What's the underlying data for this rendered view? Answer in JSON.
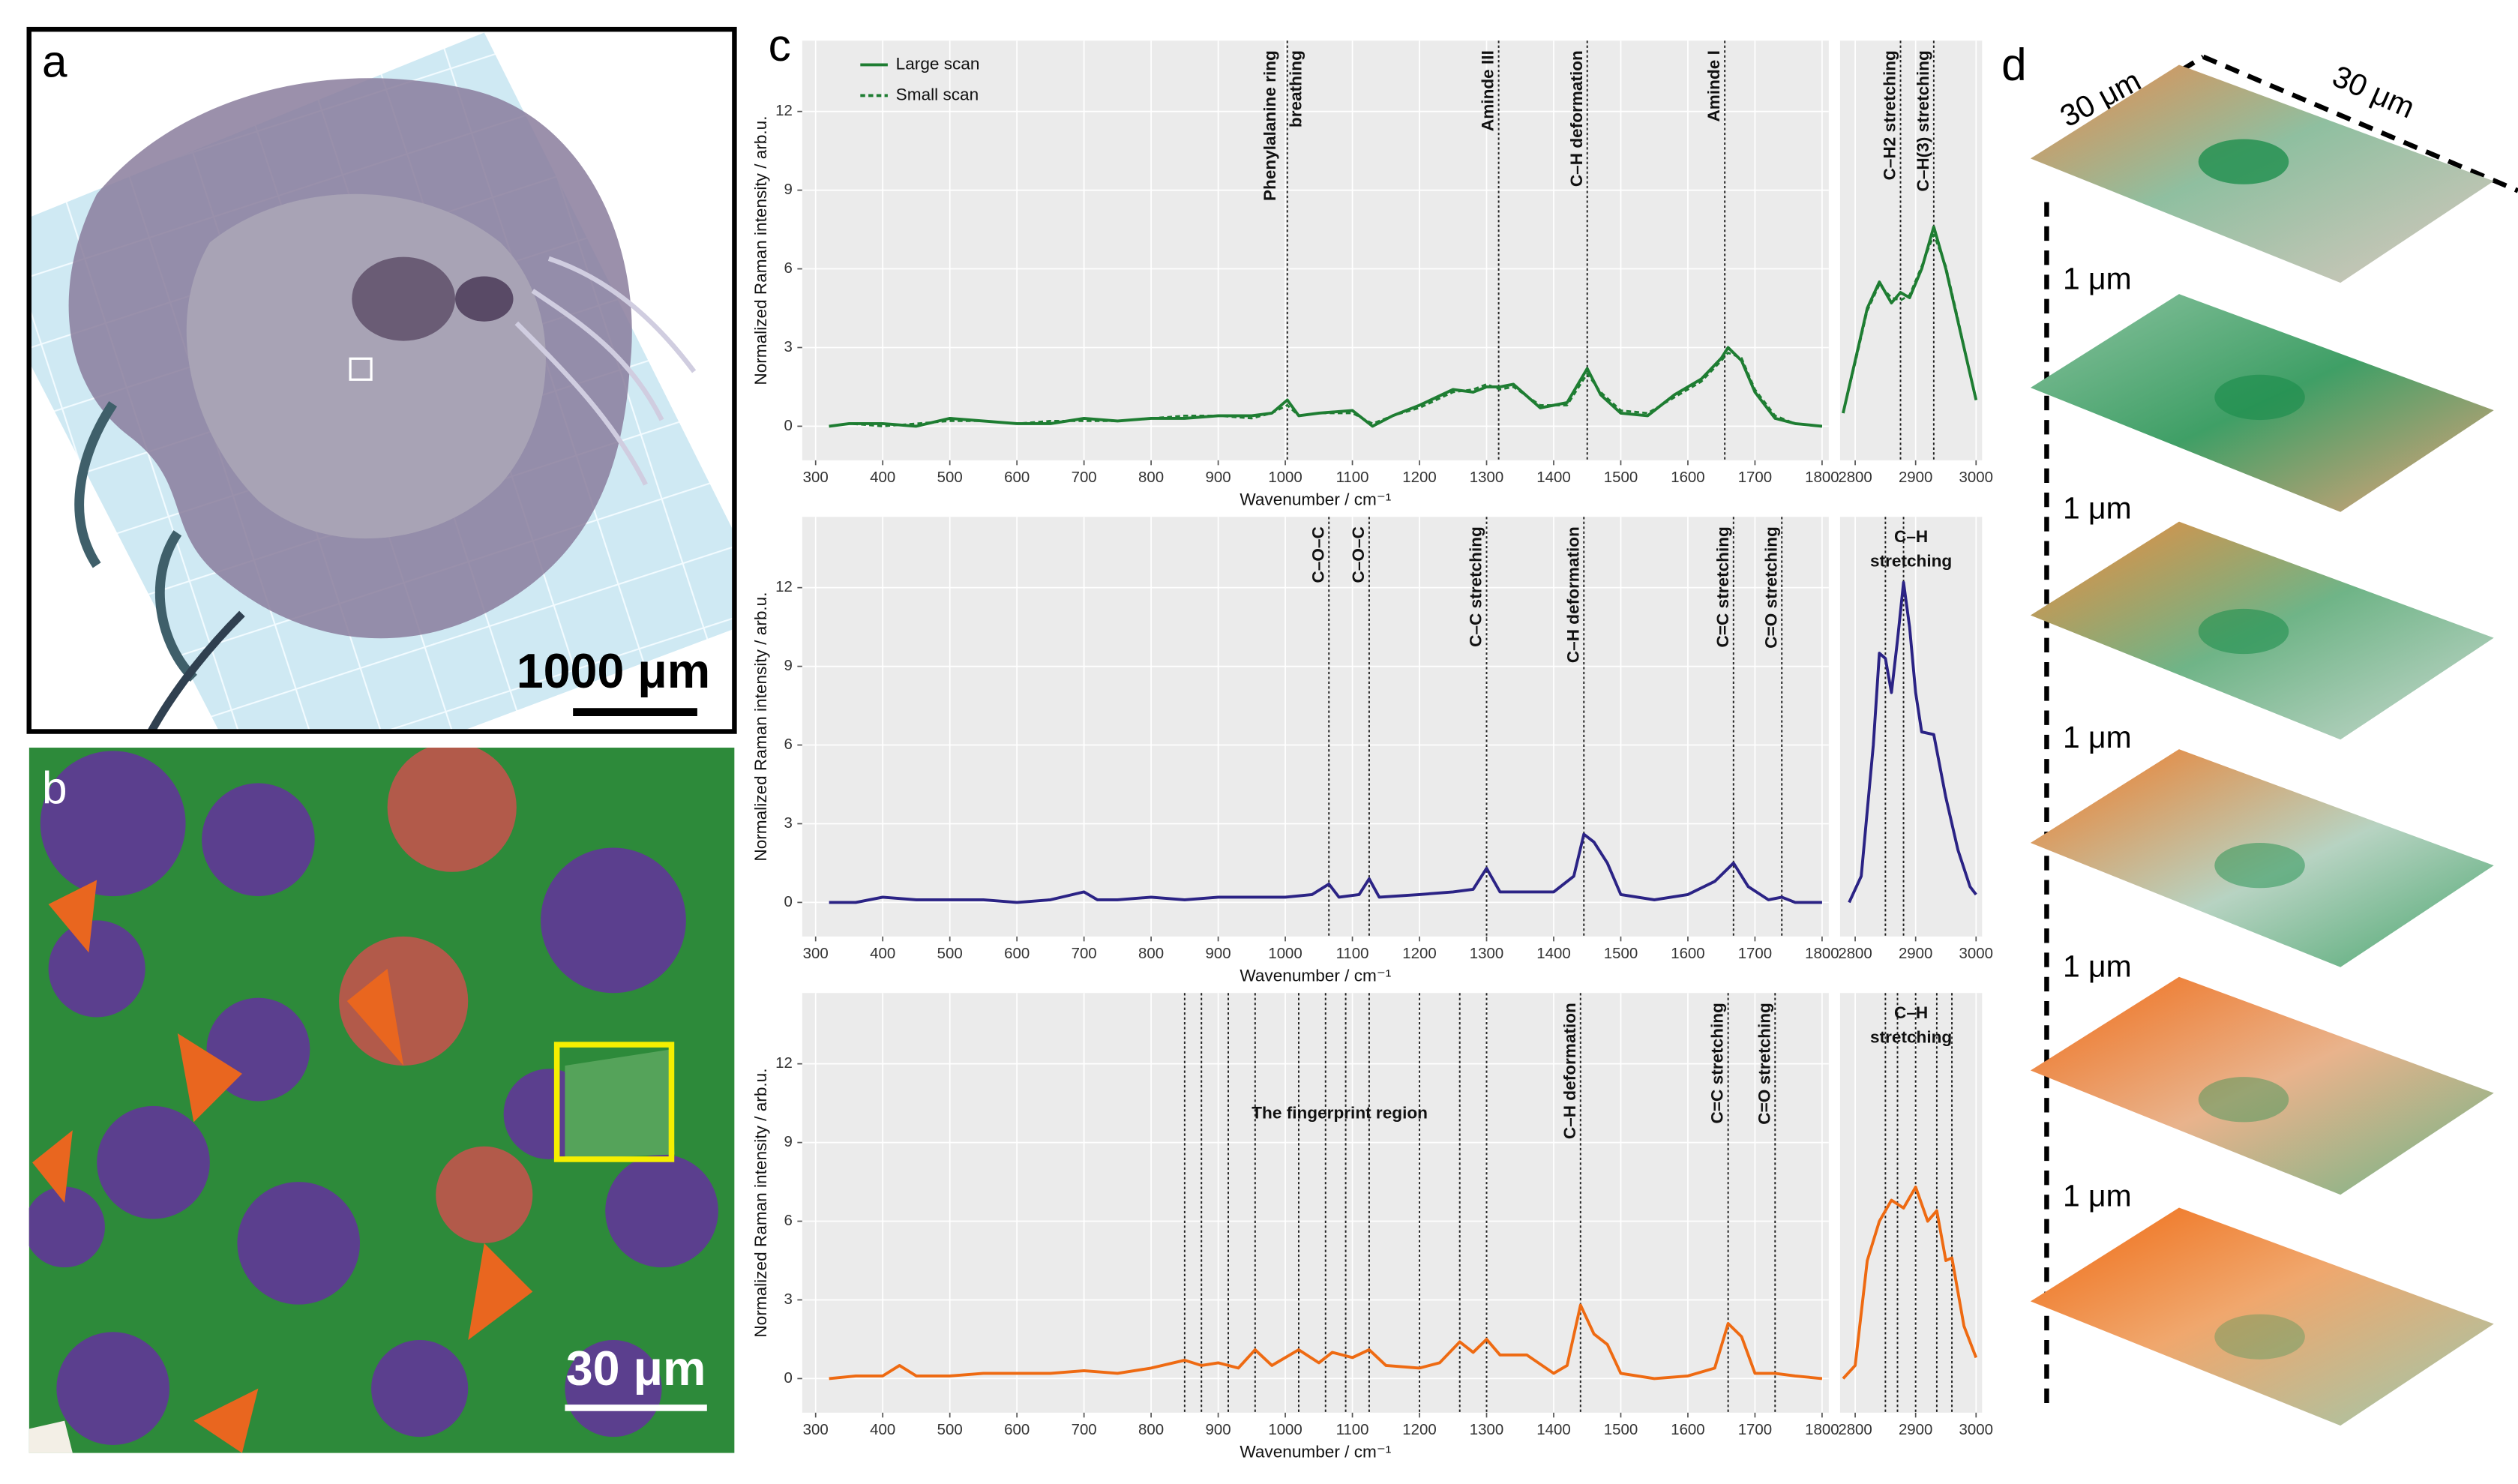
{
  "panels": {
    "a": {
      "label": "a",
      "scale_bar": "1000 μm"
    },
    "b": {
      "label": "b",
      "scale_bar": "30 μm"
    },
    "c": {
      "label": "c"
    },
    "d": {
      "label": "d",
      "width_labels": [
        "30 μm",
        "30 μm"
      ],
      "spacing_labels": [
        "1 μm",
        "1 μm",
        "1 μm",
        "1 μm",
        "1 μm"
      ]
    }
  },
  "chart_data": [
    {
      "type": "line",
      "xlabel": "Wavenumber / cm⁻¹",
      "ylabel": "Normalized Raman intensity / arb.u.",
      "xlim": [
        280,
        1810
      ],
      "xticks": [
        300,
        400,
        500,
        600,
        700,
        800,
        900,
        1000,
        1100,
        1200,
        1300,
        1400,
        1500,
        1600,
        1700,
        1800
      ],
      "ylim": [
        -1.3,
        14.7
      ],
      "yticks": [
        0,
        3,
        6,
        9,
        12
      ],
      "grid": true,
      "x": [
        320,
        350,
        400,
        450,
        500,
        550,
        600,
        650,
        700,
        750,
        800,
        850,
        900,
        950,
        980,
        1003,
        1020,
        1050,
        1100,
        1130,
        1160,
        1200,
        1250,
        1280,
        1300,
        1320,
        1340,
        1380,
        1420,
        1450,
        1470,
        1500,
        1540,
        1580,
        1620,
        1650,
        1660,
        1680,
        1700,
        1730,
        1760,
        1800
      ],
      "series": [
        {
          "name": "Large scan",
          "color": "#1e7d32",
          "style": "solid",
          "values": [
            0,
            0.1,
            0.1,
            0,
            0.3,
            0.2,
            0.1,
            0.1,
            0.3,
            0.2,
            0.3,
            0.3,
            0.4,
            0.4,
            0.5,
            1.0,
            0.4,
            0.5,
            0.6,
            0.0,
            0.4,
            0.8,
            1.4,
            1.3,
            1.5,
            1.5,
            1.6,
            0.7,
            0.9,
            2.2,
            1.2,
            0.5,
            0.4,
            1.2,
            1.8,
            2.6,
            3.0,
            2.5,
            1.3,
            0.3,
            0.1,
            0.0
          ]
        },
        {
          "name": "Small scan",
          "color": "#1e7d32",
          "style": "dashed",
          "values": [
            0,
            0.1,
            0.0,
            0.1,
            0.2,
            0.2,
            0.1,
            0.2,
            0.2,
            0.2,
            0.3,
            0.4,
            0.4,
            0.3,
            0.5,
            0.8,
            0.4,
            0.5,
            0.5,
            0.1,
            0.4,
            0.7,
            1.3,
            1.4,
            1.6,
            1.4,
            1.5,
            0.8,
            0.8,
            2.0,
            1.3,
            0.6,
            0.5,
            1.1,
            1.7,
            2.5,
            2.8,
            2.6,
            1.4,
            0.4,
            0.1,
            0.0
          ]
        }
      ],
      "legend": "upper left",
      "annotations": [
        {
          "x": 1003,
          "label": [
            "Phenylalanine ring",
            "breathing"
          ]
        },
        {
          "x": 1318,
          "label": [
            "Aminde III"
          ]
        },
        {
          "x": 1450,
          "label": [
            "C–H deformation"
          ]
        },
        {
          "x": 1655,
          "label": [
            "Aminde I"
          ]
        }
      ]
    },
    {
      "type": "line",
      "xlim": [
        2775,
        3010
      ],
      "xticks": [
        2800,
        2900,
        3000
      ],
      "ylim": [
        -1.3,
        14.7
      ],
      "grid": true,
      "x": [
        2780,
        2800,
        2820,
        2840,
        2860,
        2875,
        2890,
        2910,
        2930,
        2950,
        2970,
        2990,
        3000
      ],
      "series": [
        {
          "color": "#1e7d32",
          "style": "solid",
          "values": [
            0.5,
            2.5,
            4.5,
            5.5,
            4.7,
            5.1,
            4.9,
            6.0,
            7.6,
            6.0,
            4.0,
            2.0,
            1.0
          ]
        },
        {
          "color": "#1e7d32",
          "style": "dashed",
          "values": [
            0.5,
            2.4,
            4.4,
            5.4,
            4.9,
            4.8,
            5.0,
            6.1,
            7.3,
            6.1,
            4.1,
            2.0,
            1.0
          ]
        }
      ],
      "annotations": [
        {
          "x": 2875,
          "label": [
            "C–H2 stretching"
          ]
        },
        {
          "x": 2930,
          "label": [
            "C–H(3) stretching"
          ]
        }
      ]
    },
    {
      "type": "line",
      "xlabel": "Wavenumber / cm⁻¹",
      "ylabel": "Normalized Raman intensity / arb.u.",
      "xlim": [
        280,
        1810
      ],
      "xticks": [
        300,
        400,
        500,
        600,
        700,
        800,
        900,
        1000,
        1100,
        1200,
        1300,
        1400,
        1500,
        1600,
        1700,
        1800
      ],
      "ylim": [
        -1.3,
        14.7
      ],
      "yticks": [
        0,
        3,
        6,
        9,
        12
      ],
      "grid": true,
      "x": [
        320,
        360,
        400,
        450,
        500,
        550,
        600,
        650,
        700,
        720,
        750,
        800,
        850,
        900,
        950,
        1000,
        1040,
        1065,
        1080,
        1110,
        1125,
        1140,
        1200,
        1250,
        1280,
        1300,
        1320,
        1400,
        1430,
        1445,
        1460,
        1480,
        1500,
        1550,
        1600,
        1640,
        1668,
        1690,
        1720,
        1740,
        1760,
        1800
      ],
      "series": [
        {
          "color": "#2b2385",
          "style": "solid",
          "values": [
            0,
            0,
            0.2,
            0.1,
            0.1,
            0.1,
            0.0,
            0.1,
            0.4,
            0.1,
            0.1,
            0.2,
            0.1,
            0.2,
            0.2,
            0.2,
            0.3,
            0.7,
            0.2,
            0.3,
            0.9,
            0.2,
            0.3,
            0.4,
            0.5,
            1.3,
            0.4,
            0.4,
            1.0,
            2.6,
            2.3,
            1.5,
            0.3,
            0.1,
            0.3,
            0.8,
            1.5,
            0.6,
            0.1,
            0.2,
            0.0,
            0.0
          ]
        }
      ],
      "annotations": [
        {
          "x": 1065,
          "label": [
            "C–O–C"
          ]
        },
        {
          "x": 1125,
          "label": [
            "C–O–C"
          ]
        },
        {
          "x": 1300,
          "label": [
            "C–C stretching"
          ]
        },
        {
          "x": 1445,
          "label": [
            "C–H deformation"
          ]
        },
        {
          "x": 1668,
          "label": [
            "C=C stretching"
          ]
        },
        {
          "x": 1740,
          "label": [
            "C=O stretching"
          ]
        }
      ]
    },
    {
      "type": "line",
      "xlim": [
        2775,
        3010
      ],
      "xticks": [
        2800,
        2900,
        3000
      ],
      "ylim": [
        -1.3,
        14.7
      ],
      "grid": true,
      "x": [
        2790,
        2810,
        2830,
        2840,
        2850,
        2860,
        2870,
        2880,
        2890,
        2900,
        2910,
        2930,
        2950,
        2970,
        2990,
        3000
      ],
      "series": [
        {
          "color": "#2b2385",
          "style": "solid",
          "values": [
            0,
            1,
            6,
            9.5,
            9.3,
            8.0,
            10,
            12.2,
            10.5,
            8.0,
            6.5,
            6.4,
            4,
            2,
            0.6,
            0.3
          ]
        }
      ],
      "note": [
        "C–H",
        "stretching"
      ],
      "annotations": [
        {
          "x": 2850
        },
        {
          "x": 2880
        }
      ]
    },
    {
      "type": "line",
      "xlabel": "Wavenumber / cm⁻¹",
      "ylabel": "Normalized Raman intensity / arb.u.",
      "xlim": [
        280,
        1810
      ],
      "xticks": [
        300,
        400,
        500,
        600,
        700,
        800,
        900,
        1000,
        1100,
        1200,
        1300,
        1400,
        1500,
        1600,
        1700,
        1800
      ],
      "ylim": [
        -1.3,
        14.7
      ],
      "yticks": [
        0,
        3,
        6,
        9,
        12
      ],
      "grid": true,
      "x": [
        320,
        360,
        400,
        425,
        450,
        500,
        550,
        600,
        650,
        700,
        750,
        800,
        850,
        875,
        900,
        930,
        955,
        980,
        1020,
        1050,
        1070,
        1100,
        1125,
        1150,
        1200,
        1230,
        1260,
        1280,
        1300,
        1320,
        1360,
        1400,
        1420,
        1440,
        1460,
        1480,
        1500,
        1550,
        1600,
        1640,
        1660,
        1680,
        1700,
        1730,
        1760,
        1800
      ],
      "series": [
        {
          "color": "#ee6a12",
          "style": "solid",
          "values": [
            0,
            0.1,
            0.1,
            0.5,
            0.1,
            0.1,
            0.2,
            0.2,
            0.2,
            0.3,
            0.2,
            0.4,
            0.7,
            0.5,
            0.6,
            0.4,
            1.1,
            0.5,
            1.1,
            0.6,
            1.0,
            0.8,
            1.1,
            0.5,
            0.4,
            0.6,
            1.4,
            1.0,
            1.5,
            0.9,
            0.9,
            0.2,
            0.5,
            2.8,
            1.7,
            1.3,
            0.2,
            0.0,
            0.1,
            0.4,
            2.1,
            1.6,
            0.2,
            0.2,
            0.1,
            0.0
          ]
        }
      ],
      "note": "The fingerprint region",
      "annotations": [
        {
          "x": 850
        },
        {
          "x": 875
        },
        {
          "x": 915
        },
        {
          "x": 955
        },
        {
          "x": 1020
        },
        {
          "x": 1060
        },
        {
          "x": 1090
        },
        {
          "x": 1125
        },
        {
          "x": 1200
        },
        {
          "x": 1260
        },
        {
          "x": 1300
        },
        {
          "x": 1440,
          "label": [
            "C–H deformation"
          ]
        },
        {
          "x": 1660,
          "label": [
            "C=C stretching"
          ]
        },
        {
          "x": 1730,
          "label": [
            "C=O stretching"
          ]
        }
      ]
    },
    {
      "type": "line",
      "xlim": [
        2775,
        3010
      ],
      "xticks": [
        2800,
        2900,
        3000
      ],
      "ylim": [
        -1.3,
        14.7
      ],
      "grid": true,
      "x": [
        2780,
        2800,
        2820,
        2840,
        2860,
        2880,
        2900,
        2920,
        2935,
        2950,
        2960,
        2980,
        3000
      ],
      "series": [
        {
          "color": "#ee6a12",
          "style": "solid",
          "values": [
            0,
            0.5,
            4.5,
            6.0,
            6.8,
            6.5,
            7.3,
            6.0,
            6.4,
            4.5,
            4.6,
            2.0,
            0.8
          ]
        }
      ],
      "note": [
        "C–H",
        "stretching"
      ],
      "annotations": [
        {
          "x": 2850
        },
        {
          "x": 2870
        },
        {
          "x": 2900
        },
        {
          "x": 2935
        },
        {
          "x": 2960
        }
      ]
    }
  ]
}
